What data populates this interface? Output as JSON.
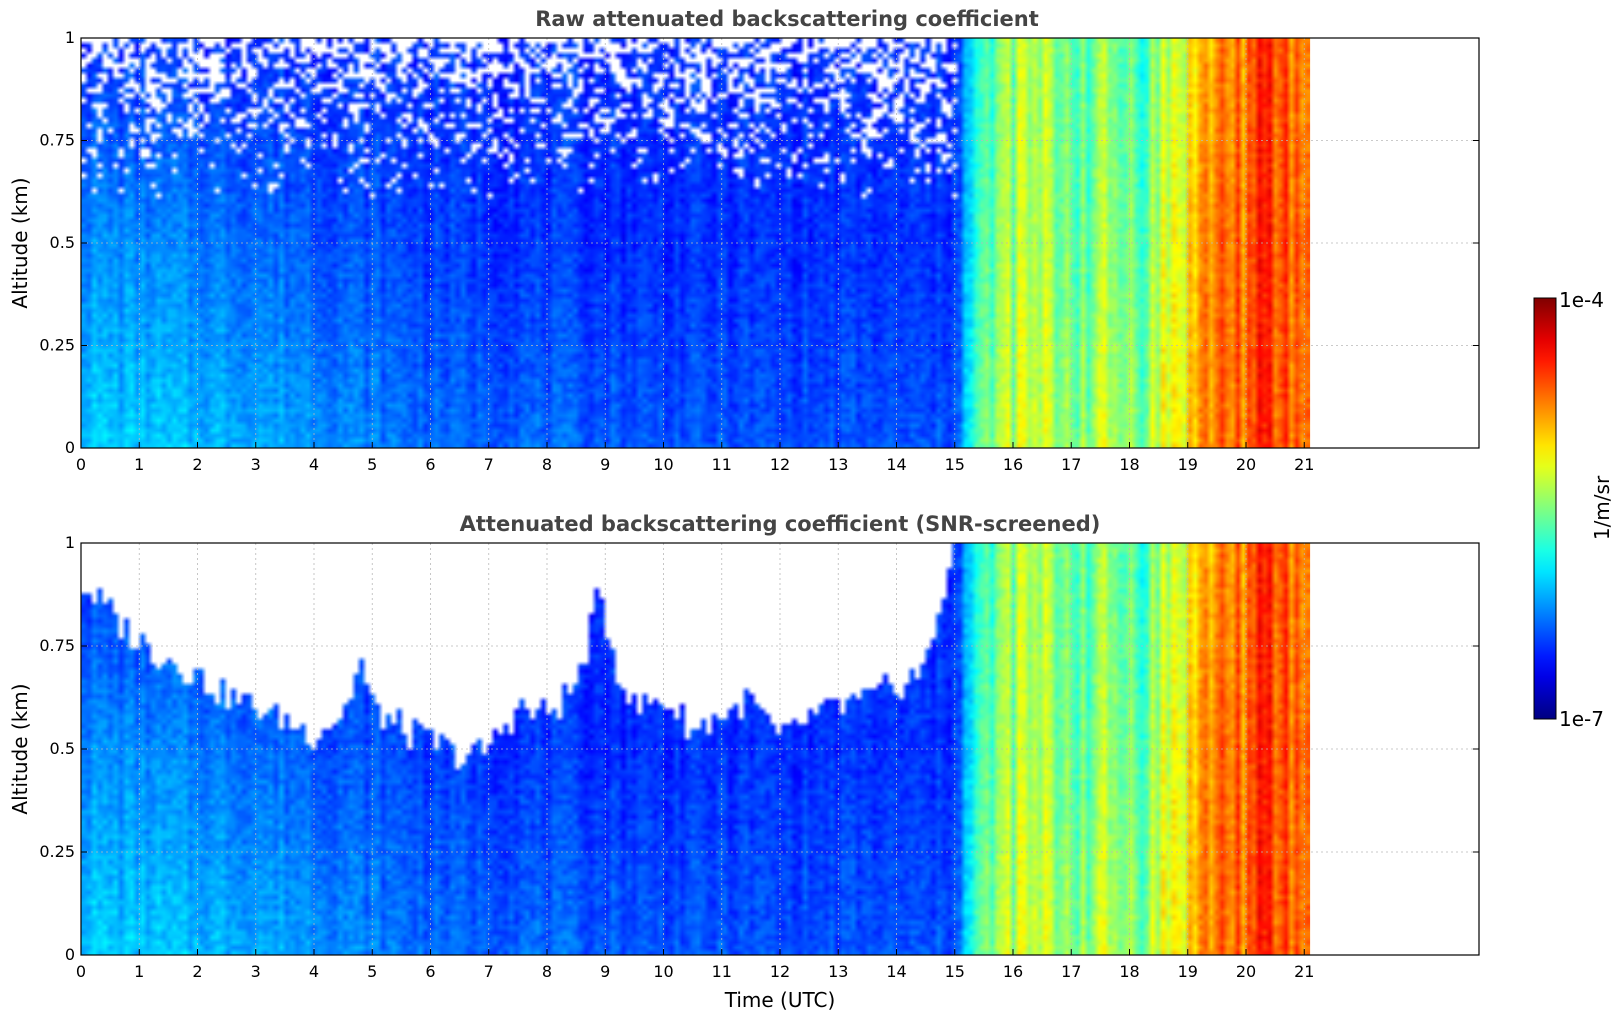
{
  "figure": {
    "xlabel": "Time (UTC)",
    "colorbar": {
      "label": "1/m/sr",
      "max_label": "1e-4",
      "min_label": "1e-7",
      "scale": "log",
      "range": [
        1e-07,
        0.0001
      ],
      "colormap": "jet"
    }
  },
  "chart_data": [
    {
      "type": "heatmap",
      "title": "Raw attenuated backscattering coefficient",
      "xlabel": "",
      "ylabel": "Altitude (km)",
      "xlim": [
        0,
        24
      ],
      "ylim": [
        0,
        1
      ],
      "xticks": [
        "0",
        "1",
        "2",
        "3",
        "4",
        "5",
        "6",
        "7",
        "8",
        "9",
        "10",
        "11",
        "12",
        "13",
        "14",
        "15",
        "16",
        "17",
        "18",
        "19",
        "20",
        "21"
      ],
      "yticks": [
        "0",
        "0.25",
        "0.5",
        "0.75",
        "1"
      ],
      "grid": true,
      "data_end_time": 21.1,
      "notes_visible": [],
      "z_overview_log10": {
        "x": [
          0,
          3,
          6,
          9,
          12,
          14.9,
          15.5,
          16.0,
          17.0,
          18.3,
          19.5,
          20.5,
          21.1
        ],
        "near_surface": [
          -6.0,
          -6.1,
          -6.3,
          -6.35,
          -6.4,
          -6.4,
          -5.6,
          -5.3,
          -5.4,
          -5.4,
          -4.7,
          -4.6,
          -4.7
        ],
        "mid_level": [
          -6.2,
          -6.3,
          -6.45,
          -6.5,
          -6.5,
          -6.5,
          -5.7,
          -5.4,
          -5.5,
          -5.5,
          -4.7,
          -4.6,
          -4.7
        ],
        "top_level": [
          -6.5,
          -6.5,
          -6.5,
          -6.5,
          -6.5,
          -6.5,
          -5.8,
          -5.4,
          -5.5,
          -5.6,
          -4.8,
          -4.6,
          -4.8
        ]
      }
    },
    {
      "type": "heatmap",
      "title": "Attenuated backscattering coefficient (SNR-screened)",
      "xlabel": "Time (UTC)",
      "ylabel": "Altitude (km)",
      "xlim": [
        0,
        24
      ],
      "ylim": [
        0,
        1
      ],
      "xticks": [
        "0",
        "1",
        "2",
        "3",
        "4",
        "5",
        "6",
        "7",
        "8",
        "9",
        "10",
        "11",
        "12",
        "13",
        "14",
        "15",
        "16",
        "17",
        "18",
        "19",
        "20",
        "21"
      ],
      "yticks": [
        "0",
        "0.25",
        "0.5",
        "0.75",
        "1"
      ],
      "grid": true,
      "data_end_time": 21.1,
      "screened_top_km": {
        "x": [
          0,
          0.5,
          1,
          1.5,
          2,
          2.5,
          3,
          3.5,
          4,
          4.5,
          4.8,
          5,
          5.5,
          6,
          6.5,
          7,
          7.5,
          8,
          8.5,
          8.9,
          9.2,
          9.5,
          10,
          10.5,
          11,
          11.5,
          12,
          12.5,
          13,
          13.5,
          14,
          14.5,
          15
        ],
        "y": [
          0.9,
          0.83,
          0.76,
          0.72,
          0.68,
          0.63,
          0.6,
          0.57,
          0.54,
          0.58,
          0.72,
          0.6,
          0.55,
          0.52,
          0.48,
          0.5,
          0.6,
          0.58,
          0.65,
          0.88,
          0.7,
          0.6,
          0.62,
          0.55,
          0.58,
          0.62,
          0.52,
          0.58,
          0.6,
          0.62,
          0.65,
          0.7,
          1.0
        ]
      }
    }
  ]
}
